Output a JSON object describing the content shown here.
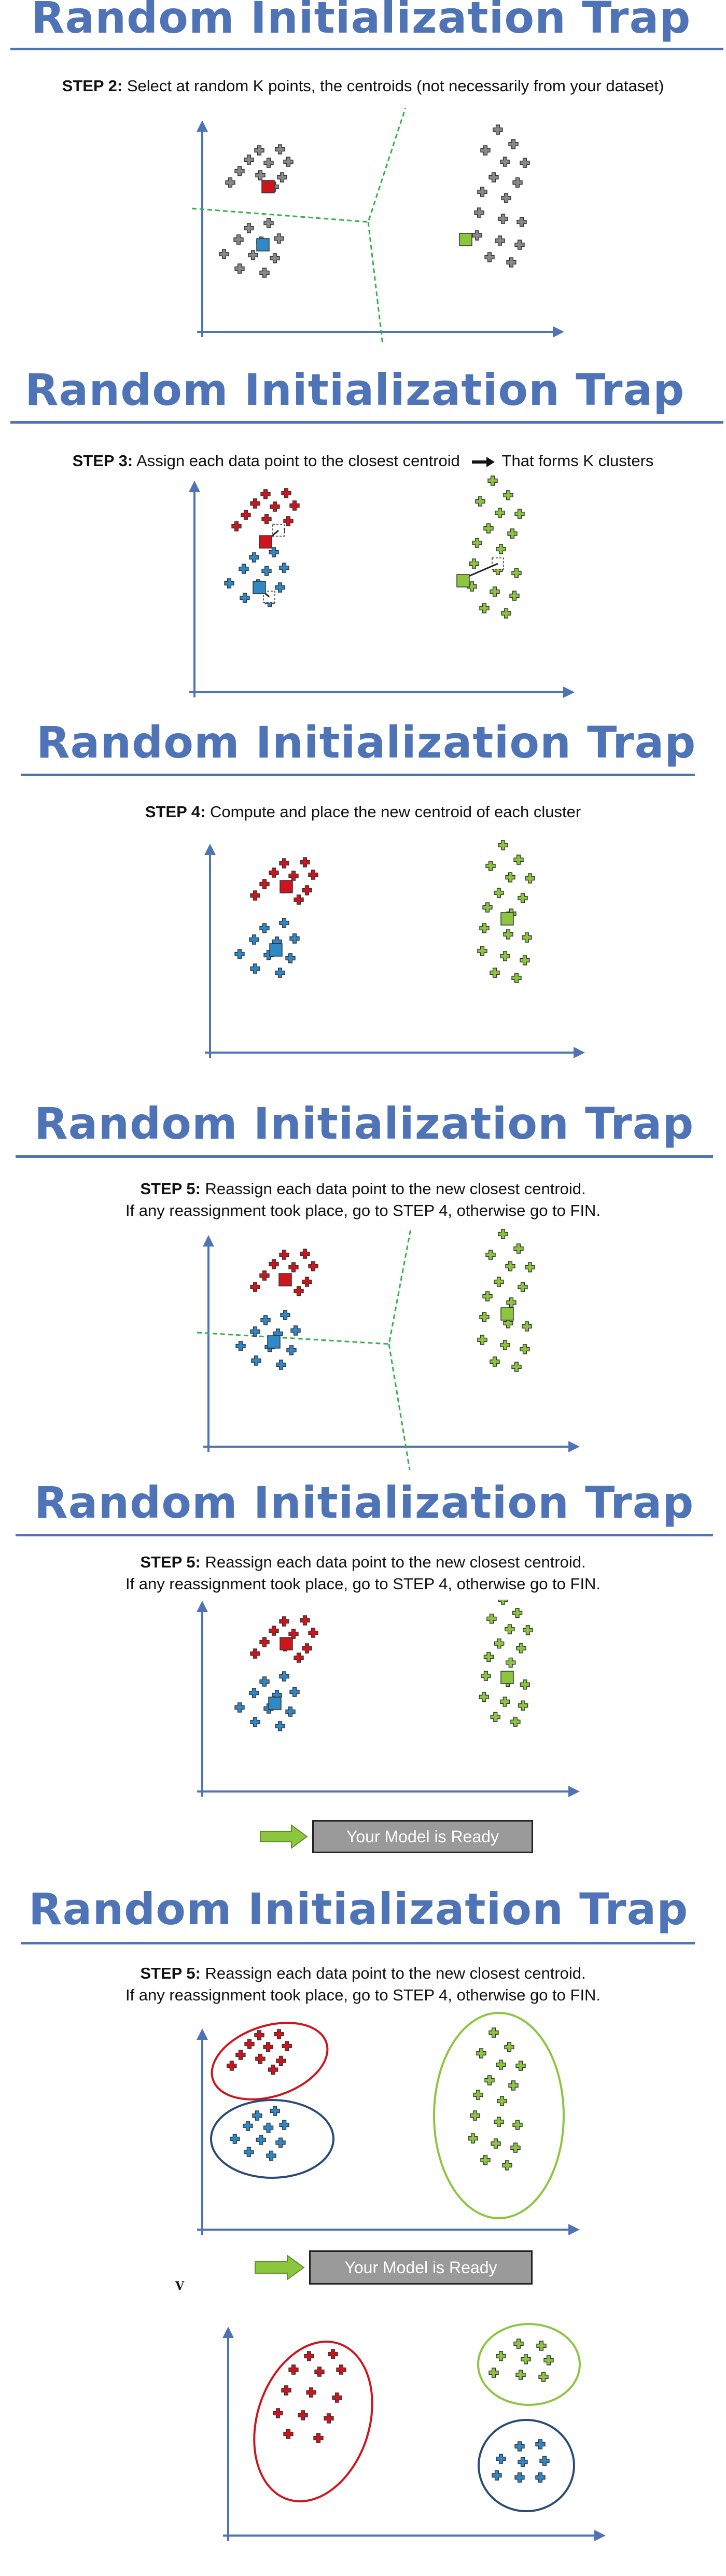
{
  "title": "Random Initialization Trap",
  "colors": {
    "title": "#4f73b7",
    "axis": "#4f73b7",
    "gray_point": "#8a8a8a",
    "red": "#d0141e",
    "blue": "#2f88c8",
    "green": "#8cc63f",
    "divider": "#2fb34a",
    "dark_ellipse": "#2a4a7a"
  },
  "steps": [
    {
      "bold": "STEP 2:",
      "text": " Select at random K points, the centroids (not necessarily from your dataset)"
    },
    {
      "bold": "STEP 3:",
      "text": " Assign each data point to the closest centroid",
      "arrow_icon": "right-arrow-icon",
      "tail": "That forms K clusters"
    },
    {
      "bold": "STEP 4:",
      "text": " Compute and place the new centroid of each cluster"
    },
    {
      "bold": "STEP 5:",
      "text": " Reassign each data point to the new closest centroid.",
      "line2": "If any reassignment took place, go to STEP 4, otherwise go to FIN."
    },
    {
      "bold": "STEP 5:",
      "text": " Reassign each data point to the new closest centroid.",
      "line2": "If any reassignment took place, go to STEP 4, otherwise go to FIN."
    },
    {
      "bold": "STEP 5:",
      "text": " Reassign each data point to the new closest centroid.",
      "line2": "If any reassignment took place, go to STEP 4, otherwise go to FIN."
    }
  ],
  "ready_label": "Your Model is Ready",
  "v_mark": "V",
  "icons": {
    "ready_arrow": "green-right-arrow-icon",
    "point": "plus-marker-icon",
    "centroid": "square-marker-icon"
  }
}
